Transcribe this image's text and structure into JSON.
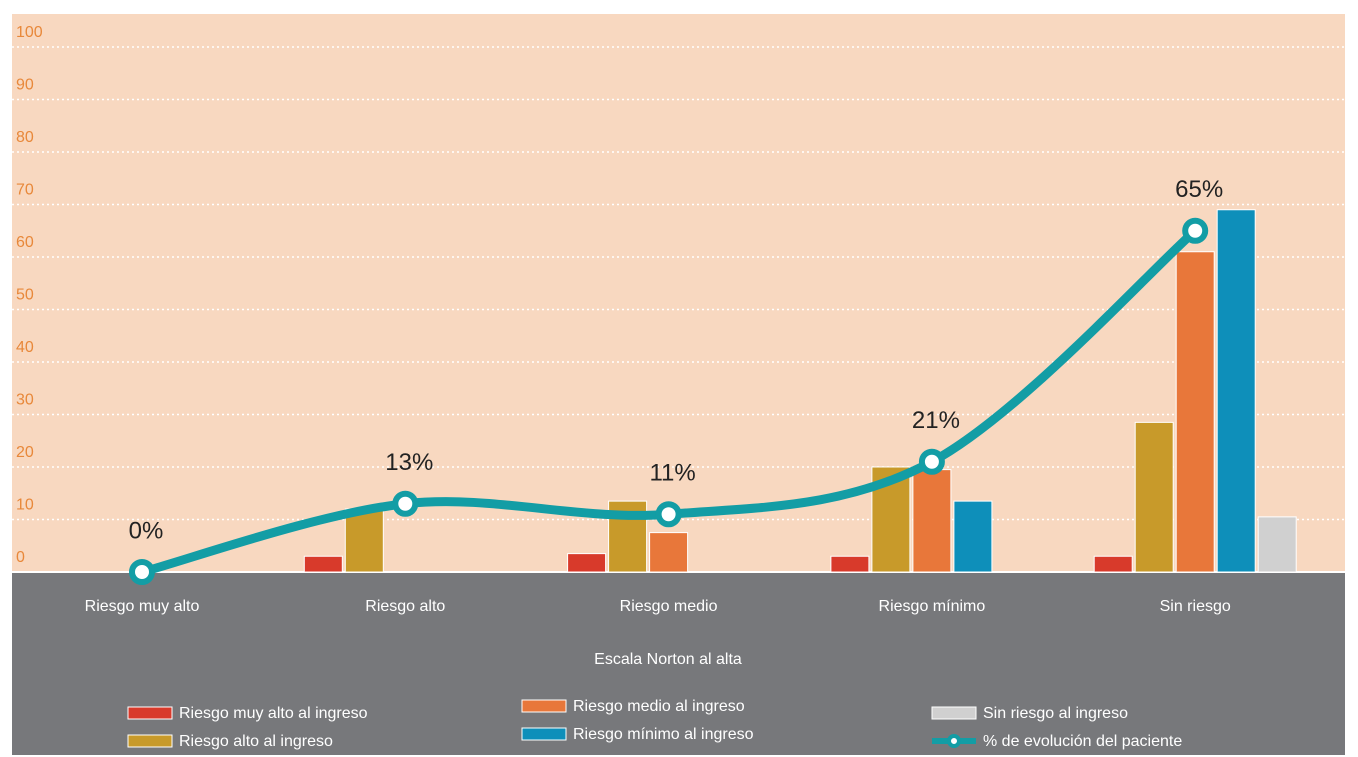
{
  "chart_data": {
    "type": "bar",
    "categories": [
      "Riesgo muy alto",
      "Riesgo alto",
      "Riesgo medio",
      "Riesgo mínimo",
      "Sin riesgo"
    ],
    "xlabel": "Escala Norton al alta",
    "series": [
      {
        "name": "Riesgo muy alto al ingreso",
        "color": "#d83a2b",
        "values": [
          0,
          3,
          3.5,
          3,
          3
        ]
      },
      {
        "name": "Riesgo alto al ingreso",
        "color": "#c89a2a",
        "values": [
          0,
          12,
          13.5,
          20,
          28.5
        ]
      },
      {
        "name": "Riesgo medio al ingreso",
        "color": "#e8773a",
        "values": [
          0,
          0,
          7.5,
          19.5,
          61
        ]
      },
      {
        "name": "Riesgo mínimo al ingreso",
        "color": "#0e8fba",
        "values": [
          0,
          0,
          0,
          13.5,
          69
        ]
      },
      {
        "name": "Sin riesgo al ingreso",
        "color": "#d0d0d0",
        "values": [
          0,
          0,
          0,
          0,
          10.5
        ]
      },
      {
        "name": "% de evolución del paciente",
        "color": "#139da5",
        "type": "line",
        "values": [
          0,
          13,
          11,
          21,
          65
        ],
        "value_labels": [
          "0%",
          "13%",
          "11%",
          "21%",
          "65%"
        ]
      }
    ],
    "ylim": [
      0,
      100
    ],
    "yticks": [
      0,
      10,
      20,
      30,
      40,
      50,
      60,
      70,
      80,
      90,
      100
    ],
    "grid": true
  }
}
